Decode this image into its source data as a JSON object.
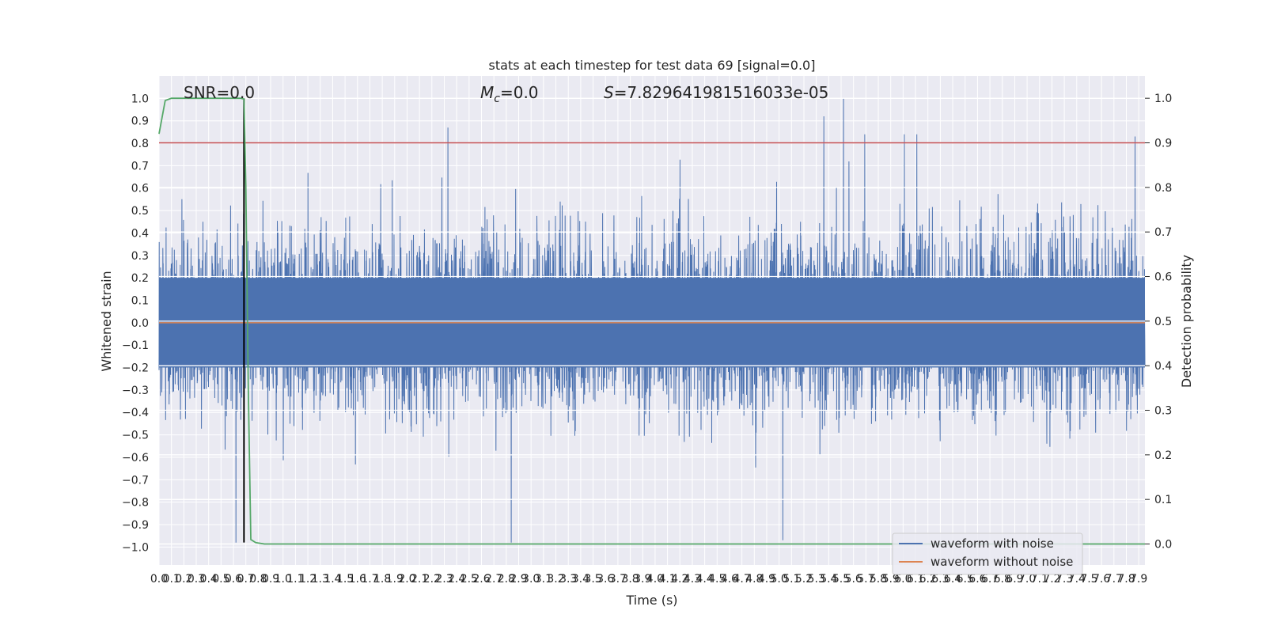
{
  "chart_data": {
    "type": "line",
    "title": "stats at each timestep for test data 69 [signal=0.0]",
    "xlabel": "Time (s)",
    "ylabel": "Whitened strain",
    "y2label": "Detection probability",
    "xlim": [
      0.0,
      7.95
    ],
    "ylim": [
      -1.08,
      1.1
    ],
    "y2lim": [
      -0.047,
      1.05
    ],
    "x_ticks": [
      0.0,
      0.1,
      0.2,
      0.3,
      0.4,
      0.5,
      0.6,
      0.7,
      0.8,
      0.9,
      1.0,
      1.1,
      1.2,
      1.3,
      1.4,
      1.5,
      1.6,
      1.7,
      1.8,
      1.9,
      2.0,
      2.1,
      2.2,
      2.3,
      2.4,
      2.5,
      2.6,
      2.7,
      2.8,
      2.9,
      3.0,
      3.1,
      3.2,
      3.3,
      3.4,
      3.5,
      3.6,
      3.7,
      3.8,
      3.9,
      4.0,
      4.1,
      4.2,
      4.3,
      4.4,
      4.5,
      4.6,
      4.7,
      4.8,
      4.9,
      5.0,
      5.1,
      5.2,
      5.3,
      5.4,
      5.5,
      5.6,
      5.7,
      5.8,
      5.9,
      6.0,
      6.1,
      6.2,
      6.3,
      6.4,
      6.5,
      6.6,
      6.7,
      6.8,
      6.9,
      7.0,
      7.1,
      7.2,
      7.3,
      7.4,
      7.5,
      7.6,
      7.7,
      7.8,
      7.9
    ],
    "y_ticks": [
      "1.0",
      "0.9",
      "0.8",
      "0.7",
      "0.6",
      "0.5",
      "0.4",
      "0.3",
      "0.2",
      "0.1",
      "0.0",
      "−0.1",
      "−0.2",
      "−0.3",
      "−0.4",
      "−0.5",
      "−0.6",
      "−0.7",
      "−0.8",
      "−0.9",
      "−1.0"
    ],
    "y2_ticks": [
      "1.0",
      "0.9",
      "0.8",
      "0.7",
      "0.6",
      "0.5",
      "0.4",
      "0.3",
      "0.2",
      "0.1",
      "0.0"
    ],
    "annotations": {
      "snr": "SNR=0.0",
      "mc_symbol": "M",
      "mc_sub": "c",
      "mc_value": "=0.0",
      "s_symbol": "S",
      "s_value": "=7.829641981516033e-05"
    },
    "series": [
      {
        "name": "waveform with noise",
        "color": "#4c72b0",
        "axis": "left",
        "description_values": {
          "typical_range": [
            -0.4,
            0.4
          ],
          "max": 1.0,
          "min": -0.98,
          "peaks": [
            [
              2.33,
              0.87
            ],
            [
              5.36,
              0.92
            ],
            [
              5.52,
              1.0
            ],
            [
              5.69,
              0.84
            ],
            [
              6.01,
              0.84
            ],
            [
              6.11,
              0.84
            ],
            [
              7.87,
              0.83
            ],
            [
              2.84,
              -0.98
            ],
            [
              5.03,
              -0.97
            ],
            [
              0.62,
              -0.98
            ]
          ]
        }
      },
      {
        "name": "waveform without noise",
        "color": "#dd8452",
        "axis": "left",
        "value": 0.0
      },
      {
        "name": "detection probability",
        "color": "#55a868",
        "axis": "right",
        "x": [
          0.0,
          0.05,
          0.1,
          0.2,
          0.4,
          0.6,
          0.66,
          0.685,
          0.7,
          0.72,
          0.74,
          0.78,
          0.85,
          1.0,
          2.0,
          3.0,
          4.0,
          5.0,
          6.0,
          7.0,
          7.95
        ],
        "y": [
          0.92,
          0.995,
          1.0,
          1.0,
          1.0,
          1.0,
          1.0,
          0.998,
          0.8,
          0.35,
          0.01,
          0.003,
          0.0,
          0.0,
          0.0,
          0.0,
          0.0,
          0.0,
          0.0,
          0.0,
          0.0
        ]
      }
    ],
    "threshold": {
      "axis": "right",
      "value": 0.9,
      "color": "#c44e52"
    },
    "marker_line": {
      "x": 0.685,
      "y_range": [
        -0.98,
        1.0
      ],
      "color": "#000000"
    },
    "legend": {
      "position": "lower-right",
      "entries": [
        {
          "label": "waveform with noise",
          "color": "#4c72b0"
        },
        {
          "label": "waveform without noise",
          "color": "#dd8452"
        }
      ]
    },
    "grid": true,
    "background": "#eaeaf2"
  }
}
